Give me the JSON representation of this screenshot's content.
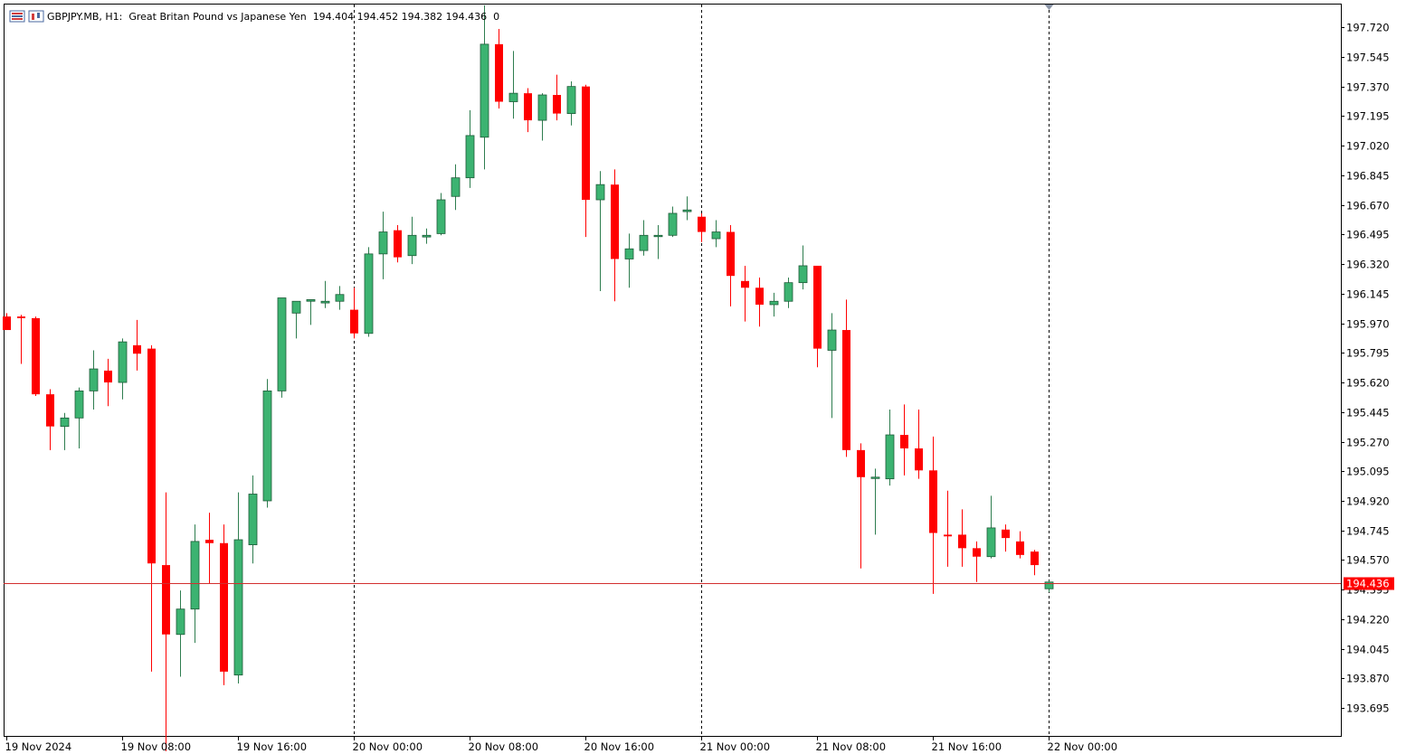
{
  "header": {
    "symbol": "GBPJPY.MB, H1:",
    "description": "Great Britan Pound vs Japanese Yen",
    "ohlc": "194.404 194.452 194.382 194.436",
    "volume": "0"
  },
  "icons": [
    "chart-list-icon",
    "chart-type-icon"
  ],
  "colors": {
    "bull": "#3cb371",
    "bear": "#ff0000",
    "grid_separator": "#000000",
    "price_line": "#d32f2f",
    "price_label_bg": "#ff0000"
  },
  "chart_data": {
    "type": "candlestick",
    "symbol": "GBPJPY.MB",
    "timeframe": "H1",
    "current_price": "194.436",
    "ylim": [
      193.53,
      197.86
    ],
    "y_ticks": [
      "197.720",
      "197.545",
      "197.370",
      "197.195",
      "197.020",
      "196.845",
      "196.670",
      "196.495",
      "196.320",
      "196.145",
      "195.970",
      "195.795",
      "195.620",
      "195.445",
      "195.270",
      "195.095",
      "194.920",
      "194.745",
      "194.570",
      "194.395",
      "194.220",
      "194.045",
      "193.870",
      "193.695"
    ],
    "x_ticks": [
      {
        "label": "19 Nov 2024",
        "index": 0
      },
      {
        "label": "19 Nov 08:00",
        "index": 8
      },
      {
        "label": "19 Nov 16:00",
        "index": 16
      },
      {
        "label": "20 Nov 00:00",
        "index": 24
      },
      {
        "label": "20 Nov 08:00",
        "index": 32
      },
      {
        "label": "20 Nov 16:00",
        "index": 40
      },
      {
        "label": "21 Nov 00:00",
        "index": 48
      },
      {
        "label": "21 Nov 08:00",
        "index": 56
      },
      {
        "label": "21 Nov 16:00",
        "index": 64
      },
      {
        "label": "22 Nov 00:00",
        "index": 72
      }
    ],
    "day_separators": [
      24,
      48,
      72
    ],
    "candles": [
      [
        196.01,
        196.03,
        195.93,
        195.93
      ],
      [
        196.01,
        196.02,
        195.73,
        196.0
      ],
      [
        196.0,
        196.01,
        195.54,
        195.55
      ],
      [
        195.55,
        195.58,
        195.22,
        195.36
      ],
      [
        195.36,
        195.44,
        195.22,
        195.41
      ],
      [
        195.41,
        195.59,
        195.23,
        195.57
      ],
      [
        195.57,
        195.81,
        195.46,
        195.7
      ],
      [
        195.69,
        195.76,
        195.48,
        195.62
      ],
      [
        195.62,
        195.88,
        195.52,
        195.86
      ],
      [
        195.84,
        195.99,
        195.69,
        195.79
      ],
      [
        195.82,
        195.84,
        193.91,
        194.55
      ],
      [
        194.54,
        194.97,
        193.44,
        194.13
      ],
      [
        194.13,
        194.39,
        193.88,
        194.28
      ],
      [
        194.28,
        194.78,
        194.08,
        194.68
      ],
      [
        194.69,
        194.85,
        194.43,
        194.67
      ],
      [
        194.67,
        194.78,
        193.83,
        193.91
      ],
      [
        193.89,
        194.97,
        193.84,
        194.69
      ],
      [
        194.66,
        195.07,
        194.55,
        194.96
      ],
      [
        194.92,
        195.64,
        194.88,
        195.57
      ],
      [
        195.57,
        196.12,
        195.53,
        196.12
      ],
      [
        196.03,
        196.09,
        195.88,
        196.1
      ],
      [
        196.1,
        196.1,
        195.96,
        196.11
      ],
      [
        196.09,
        196.22,
        196.06,
        196.1
      ],
      [
        196.1,
        196.19,
        196.05,
        196.14
      ],
      [
        196.05,
        196.18,
        195.88,
        195.91
      ],
      [
        195.91,
        196.42,
        195.89,
        196.38
      ],
      [
        196.38,
        196.63,
        196.23,
        196.51
      ],
      [
        196.52,
        196.55,
        196.33,
        196.36
      ],
      [
        196.37,
        196.6,
        196.32,
        196.49
      ],
      [
        196.48,
        196.53,
        196.44,
        196.49
      ],
      [
        196.5,
        196.74,
        196.49,
        196.7
      ],
      [
        196.72,
        196.91,
        196.64,
        196.83
      ],
      [
        196.83,
        197.23,
        196.77,
        197.08
      ],
      [
        197.07,
        197.85,
        196.88,
        197.62
      ],
      [
        197.62,
        197.71,
        197.24,
        197.28
      ],
      [
        197.28,
        197.58,
        197.18,
        197.33
      ],
      [
        197.33,
        197.36,
        197.1,
        197.17
      ],
      [
        197.17,
        197.33,
        197.05,
        197.32
      ],
      [
        197.32,
        197.44,
        197.17,
        197.21
      ],
      [
        197.21,
        197.4,
        197.14,
        197.37
      ],
      [
        197.37,
        197.38,
        196.48,
        196.7
      ],
      [
        196.7,
        196.87,
        196.16,
        196.79
      ],
      [
        196.79,
        196.88,
        196.1,
        196.35
      ],
      [
        196.35,
        196.5,
        196.18,
        196.41
      ],
      [
        196.4,
        196.58,
        196.37,
        196.49
      ],
      [
        196.49,
        196.55,
        196.35,
        196.49
      ],
      [
        196.49,
        196.66,
        196.48,
        196.62
      ],
      [
        196.63,
        196.72,
        196.58,
        196.64
      ],
      [
        196.6,
        196.62,
        196.45,
        196.51
      ],
      [
        196.47,
        196.58,
        196.42,
        196.51
      ],
      [
        196.51,
        196.55,
        196.07,
        196.25
      ],
      [
        196.22,
        196.31,
        195.98,
        196.18
      ],
      [
        196.18,
        196.24,
        195.95,
        196.08
      ],
      [
        196.08,
        196.15,
        196.01,
        196.1
      ],
      [
        196.1,
        196.24,
        196.06,
        196.21
      ],
      [
        196.21,
        196.43,
        196.17,
        196.31
      ],
      [
        196.31,
        196.31,
        195.71,
        195.82
      ],
      [
        195.81,
        196.03,
        195.41,
        195.93
      ],
      [
        195.93,
        196.11,
        195.18,
        195.22
      ],
      [
        195.22,
        195.26,
        194.52,
        195.06
      ],
      [
        195.06,
        195.11,
        194.72,
        195.06
      ],
      [
        195.05,
        195.46,
        195.01,
        195.31
      ],
      [
        195.31,
        195.49,
        195.07,
        195.23
      ],
      [
        195.23,
        195.46,
        195.05,
        195.1
      ],
      [
        195.1,
        195.3,
        194.37,
        194.73
      ],
      [
        194.72,
        194.98,
        194.53,
        194.71
      ],
      [
        194.72,
        194.87,
        194.53,
        194.64
      ],
      [
        194.64,
        194.68,
        194.44,
        194.59
      ],
      [
        194.59,
        194.95,
        194.58,
        194.76
      ],
      [
        194.75,
        194.78,
        194.62,
        194.7
      ],
      [
        194.68,
        194.74,
        194.58,
        194.6
      ],
      [
        194.62,
        194.63,
        194.48,
        194.54
      ],
      [
        194.4,
        194.45,
        194.38,
        194.44
      ]
    ]
  }
}
